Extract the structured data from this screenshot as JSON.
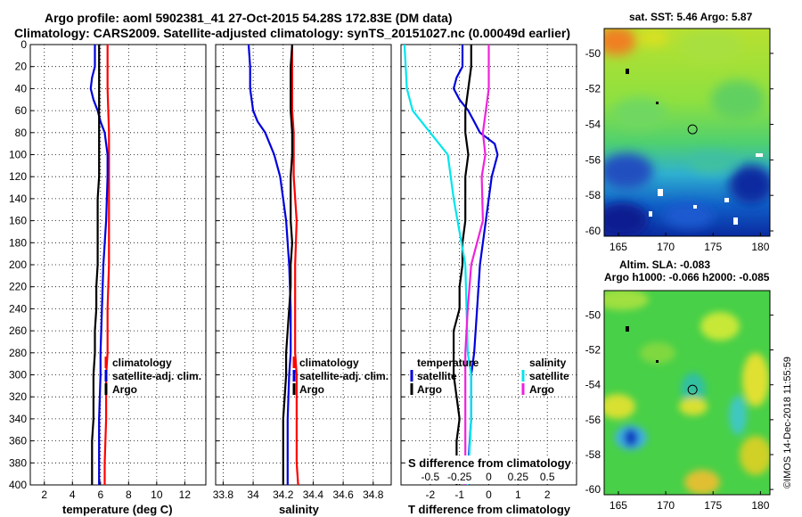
{
  "header": {
    "line1": "Argo profile: aoml 5902381_41 27-Oct-2015 54.28S 172.83E (DM data)",
    "line2": "Climatology: CARS2009. Satellite-adjusted climatology: synTS_20151027.nc (0.00049d earlier)"
  },
  "colors": {
    "red": "#ff0000",
    "blue": "#0000dd",
    "black": "#000000",
    "cyan": "#00e5ee",
    "magenta": "#ee22dd"
  },
  "depth_ticks": [
    "0",
    "20",
    "40",
    "60",
    "80",
    "100",
    "120",
    "140",
    "160",
    "180",
    "200",
    "220",
    "240",
    "260",
    "280",
    "300",
    "320",
    "340",
    "360",
    "380",
    "400"
  ],
  "chart_data": [
    {
      "type": "line",
      "id": "temperature",
      "xlabel": "temperature (deg C)",
      "ylabel": "depth",
      "xlim": [
        1,
        13.5
      ],
      "ylim": [
        400,
        0
      ],
      "xticks": [
        2,
        4,
        6,
        8,
        10,
        12
      ],
      "xtick_labels": [
        "2",
        "4",
        "6",
        "8",
        "10",
        "12"
      ],
      "grid": true,
      "legend": [
        "climatology",
        "satellite-adj. clim.",
        "Argo"
      ],
      "series": [
        {
          "name": "climatology",
          "color": "#ff0000",
          "depth": [
            0,
            40,
            80,
            100,
            120,
            160,
            200,
            240,
            280,
            300,
            340,
            380,
            400
          ],
          "values": [
            6.5,
            6.5,
            6.6,
            6.6,
            6.6,
            6.6,
            6.6,
            6.5,
            6.5,
            6.4,
            6.4,
            6.3,
            6.3
          ]
        },
        {
          "name": "satellite-adj. clim.",
          "color": "#0000dd",
          "depth": [
            0,
            20,
            30,
            40,
            50,
            60,
            70,
            80,
            90,
            100,
            120,
            160,
            200,
            240,
            280,
            300,
            340,
            380,
            400
          ],
          "values": [
            5.6,
            5.6,
            5.4,
            5.3,
            5.5,
            5.8,
            6.0,
            6.3,
            6.4,
            6.5,
            6.5,
            6.4,
            6.2,
            6.1,
            6.0,
            6.0,
            5.9,
            5.9,
            5.9
          ]
        },
        {
          "name": "Argo",
          "color": "#000000",
          "depth": [
            0,
            20,
            40,
            60,
            80,
            100,
            120,
            140,
            160,
            180,
            200,
            220,
            240,
            260,
            280,
            300,
            320,
            340,
            360,
            380,
            400
          ],
          "values": [
            5.9,
            5.9,
            5.9,
            5.9,
            5.9,
            5.9,
            5.9,
            5.8,
            5.8,
            5.8,
            5.8,
            5.7,
            5.7,
            5.6,
            5.6,
            5.5,
            5.5,
            5.5,
            5.4,
            5.4,
            5.4
          ]
        }
      ]
    },
    {
      "type": "line",
      "id": "salinity",
      "xlabel": "salinity",
      "ylabel": "depth",
      "xlim": [
        33.75,
        34.92
      ],
      "ylim": [
        400,
        0
      ],
      "xticks": [
        33.8,
        34.0,
        34.2,
        34.4,
        34.6,
        34.8
      ],
      "xtick_labels": [
        "33.8",
        "34",
        "34.2",
        "34.4",
        "34.6",
        "34.8"
      ],
      "grid": true,
      "legend": [
        "climatology",
        "satellite-adj. clim.",
        "Argo"
      ],
      "series": [
        {
          "name": "climatology",
          "color": "#ff0000",
          "depth": [
            0,
            60,
            80,
            120,
            160,
            200,
            240,
            280,
            300,
            340,
            380,
            400
          ],
          "values": [
            34.26,
            34.26,
            34.27,
            34.27,
            34.29,
            34.28,
            34.28,
            34.28,
            34.29,
            34.29,
            34.29,
            34.3
          ]
        },
        {
          "name": "satellite-adj. clim.",
          "color": "#0000dd",
          "depth": [
            0,
            20,
            40,
            60,
            70,
            80,
            100,
            120,
            160,
            200,
            240,
            280,
            300,
            340,
            380,
            400
          ],
          "values": [
            33.97,
            33.98,
            33.98,
            34.0,
            34.03,
            34.08,
            34.14,
            34.18,
            34.22,
            34.24,
            34.25,
            34.25,
            34.24,
            34.23,
            34.23,
            34.23
          ]
        },
        {
          "name": "Argo",
          "color": "#000000",
          "depth": [
            0,
            20,
            40,
            60,
            80,
            100,
            120,
            140,
            160,
            180,
            200,
            220,
            240,
            260,
            280,
            300,
            320,
            340,
            360,
            380,
            400
          ],
          "values": [
            34.26,
            34.25,
            34.25,
            34.25,
            34.26,
            34.26,
            34.25,
            34.25,
            34.25,
            34.26,
            34.25,
            34.25,
            34.24,
            34.23,
            34.22,
            34.22,
            34.21,
            34.2,
            34.2,
            34.2,
            34.2
          ]
        }
      ]
    },
    {
      "type": "line",
      "id": "difference",
      "xlabel": "T difference from climatology",
      "top_label": "S difference from climatology",
      "ylabel": "depth",
      "xlim": [
        -3,
        3
      ],
      "ylim": [
        400,
        0
      ],
      "xticks": [
        -2,
        -1,
        0,
        1,
        2
      ],
      "xtick_labels": [
        "-2",
        "-1",
        "0",
        "1",
        "2"
      ],
      "top_ticks": [
        -0.5,
        -0.25,
        0,
        0.25,
        0.5
      ],
      "top_tick_labels": [
        "-0.5",
        "-0.25",
        "0",
        "0.25",
        "0.5"
      ],
      "grid": true,
      "legend_groups": [
        {
          "title": "temperature",
          "items": [
            "satellite",
            "Argo"
          ]
        },
        {
          "title": "salinity",
          "items": [
            "satellite",
            "Argo"
          ]
        }
      ],
      "series": [
        {
          "name": "temperature satellite",
          "color": "#0000dd",
          "depth": [
            0,
            20,
            30,
            40,
            50,
            60,
            70,
            80,
            90,
            100,
            120,
            160,
            200,
            240,
            280,
            300,
            340,
            380,
            400
          ],
          "values": [
            -0.9,
            -0.9,
            -1.1,
            -1.2,
            -1.0,
            -0.7,
            -0.5,
            -0.3,
            0.2,
            0.3,
            0.1,
            -0.1,
            -0.3,
            -0.4,
            -0.5,
            -0.6,
            -0.6,
            -0.7,
            -0.7
          ]
        },
        {
          "name": "temperature Argo",
          "color": "#000000",
          "depth": [
            0,
            20,
            40,
            60,
            80,
            100,
            120,
            140,
            160,
            180,
            200,
            220,
            240,
            260,
            280,
            300,
            320,
            340,
            360,
            380,
            400
          ],
          "values": [
            -0.6,
            -0.6,
            -0.7,
            -0.8,
            -0.8,
            -0.7,
            -0.8,
            -0.8,
            -0.8,
            -0.9,
            -0.9,
            -1.0,
            -1.0,
            -1.2,
            -1.2,
            -1.2,
            -1.1,
            -1.0,
            -1.1,
            -1.1,
            -1.1
          ]
        },
        {
          "name": "salinity satellite",
          "color": "#00e5ee",
          "depth": [
            0,
            40,
            60,
            80,
            100,
            140,
            200,
            280,
            300,
            340,
            400
          ],
          "values": [
            -0.72,
            -0.7,
            -0.65,
            -0.5,
            -0.35,
            -0.3,
            -0.2,
            -0.18,
            -0.15,
            -0.15,
            -0.18
          ]
        },
        {
          "name": "salinity Argo",
          "color": "#ee22dd",
          "depth": [
            0,
            40,
            80,
            100,
            120,
            160,
            200,
            240,
            280,
            300,
            340,
            380,
            400
          ],
          "values": [
            0.0,
            0.0,
            -0.05,
            -0.03,
            -0.06,
            -0.05,
            -0.15,
            -0.18,
            -0.2,
            -0.2,
            -0.2,
            -0.2,
            -0.2
          ]
        }
      ]
    },
    {
      "type": "heatmap",
      "id": "sst_map",
      "title": "sat. SST: 5.46 Argo: 5.87",
      "xlim": [
        163.5,
        181
      ],
      "ylim": [
        -60.3,
        -48.6
      ],
      "xticks": [
        165,
        170,
        175,
        180
      ],
      "yticks": [
        -60,
        -58,
        -56,
        -54,
        -52,
        -50
      ],
      "marker": {
        "lon": 172.83,
        "lat": -54.28
      }
    },
    {
      "type": "heatmap",
      "id": "sla_map",
      "title_line1": "Altim. SLA: -0.083",
      "title_line2": "Argo h1000: -0.066 h2000: -0.085",
      "xlim": [
        163.5,
        181
      ],
      "ylim": [
        -60.3,
        -48.6
      ],
      "xticks": [
        165,
        170,
        175,
        180
      ],
      "yticks": [
        -60,
        -58,
        -56,
        -54,
        -52,
        -50
      ],
      "marker": {
        "lon": 172.83,
        "lat": -54.28
      }
    }
  ],
  "footer": {
    "stamp": "©IMOS 14-Dec-2018 11:55:59"
  }
}
